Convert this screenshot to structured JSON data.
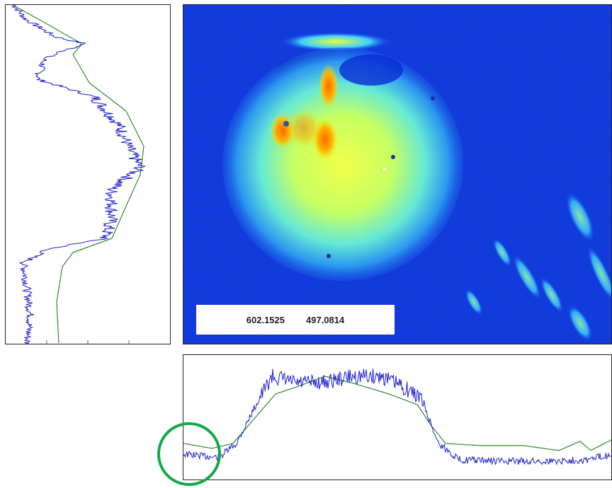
{
  "coordinates": {
    "x_value": "602.1525",
    "y_value": "497.0814"
  },
  "colors": {
    "profile_line": "#1f1fd0",
    "reference_line": "#2e8b2e",
    "highlight": "#15a84b",
    "image_background": "#0a2cd6"
  }
}
